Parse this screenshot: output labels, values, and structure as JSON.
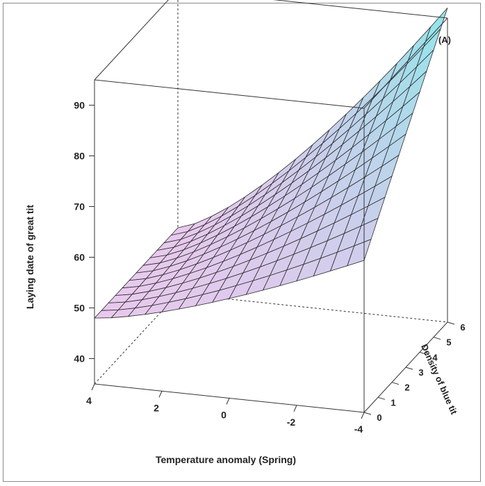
{
  "chart_data": {
    "type": "surface3d",
    "panel_label": "(A)",
    "xlabel": "Temperature anomaly (Spring)",
    "ylabel": "Density of blue tit",
    "zlabel": "Laying date of great tit",
    "x_ticks": [
      "4",
      "2",
      "0",
      "-2",
      "-4"
    ],
    "y_ticks": [
      "0",
      "1",
      "2",
      "3",
      "4",
      "5",
      "6"
    ],
    "z_ticks": [
      "40",
      "50",
      "60",
      "70",
      "80",
      "90"
    ],
    "xlim": [
      -4,
      4
    ],
    "ylim": [
      0,
      6
    ],
    "zlim": [
      35,
      95
    ],
    "surface": {
      "corners": [
        {
          "temperature": 4,
          "density": 0,
          "laying_date": 48
        },
        {
          "temperature": 4,
          "density": 6,
          "laying_date": 48
        },
        {
          "temperature": -4,
          "density": 0,
          "laying_date": 65
        },
        {
          "temperature": -4,
          "density": 6,
          "laying_date": 97
        }
      ],
      "color_low": "#cc88d8",
      "color_high": "#6fe2e6"
    }
  }
}
